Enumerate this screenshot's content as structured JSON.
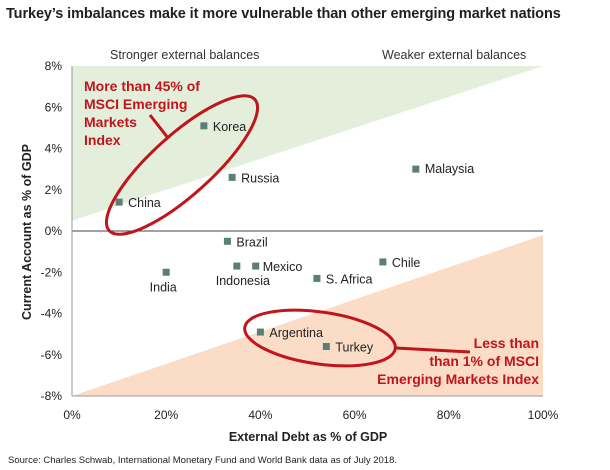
{
  "title": "Turkey’s imbalances make it more vulnerable than other emerging market nations",
  "source": "Source: Charles Schwab, International Monetary Fund and World Bank data as of July 2018.",
  "colors": {
    "stronger_fill": "#e3eedb",
    "weaker_fill": "#fbdcc7",
    "marker": "#5b7f78",
    "callout": "#c0151b"
  },
  "chart_data": {
    "type": "scatter",
    "xlabel": "External Debt as % of GDP",
    "ylabel": "Current Account as % of GDP",
    "xlim": [
      0,
      100
    ],
    "ylim": [
      -8,
      8
    ],
    "x_ticks": [
      0,
      20,
      40,
      60,
      80,
      100
    ],
    "x_tick_labels": [
      "0%",
      "20%",
      "40%",
      "60%",
      "80%",
      "100%"
    ],
    "y_ticks": [
      8,
      6,
      4,
      2,
      0,
      -2,
      -4,
      -6,
      -8
    ],
    "y_tick_labels": [
      "8%",
      "6%",
      "4%",
      "2%",
      "0%",
      "-2%",
      "-4%",
      "-6%",
      "-8%"
    ],
    "legend": [
      {
        "name": "Stronger external balances",
        "color": "#e3eedb"
      },
      {
        "name": "Weaker external balances",
        "color": "#fbdcc7"
      }
    ],
    "points": [
      {
        "name": "Korea",
        "x": 28,
        "y": 5.1
      },
      {
        "name": "China",
        "x": 10,
        "y": 1.4
      },
      {
        "name": "Russia",
        "x": 34,
        "y": 2.6
      },
      {
        "name": "Malaysia",
        "x": 73,
        "y": 3.0
      },
      {
        "name": "Brazil",
        "x": 33,
        "y": -0.5
      },
      {
        "name": "India",
        "x": 20,
        "y": -2.0
      },
      {
        "name": "Indonesia",
        "x": 35,
        "y": -1.7
      },
      {
        "name": "Mexico",
        "x": 39,
        "y": -1.7
      },
      {
        "name": "S. Africa",
        "x": 52,
        "y": -2.3
      },
      {
        "name": "Chile",
        "x": 66,
        "y": -1.5
      },
      {
        "name": "Argentina",
        "x": 40,
        "y": -4.9
      },
      {
        "name": "Turkey",
        "x": 54,
        "y": -5.6
      }
    ],
    "annotations": [
      {
        "lines": [
          "More than 45% of",
          "MSCI Emerging",
          "Markets",
          "Index"
        ]
      },
      {
        "lines": [
          "Less than",
          "than 1% of MSCI",
          "Emerging Markets Index"
        ]
      }
    ]
  }
}
